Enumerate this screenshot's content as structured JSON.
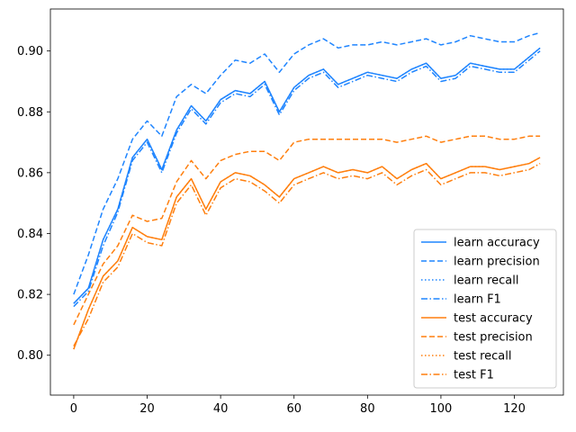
{
  "chart_data": {
    "type": "line",
    "title": "",
    "xlabel": "",
    "ylabel": "",
    "xlim": [
      -6.35,
      133.35
    ],
    "ylim": [
      0.7869,
      0.9138
    ],
    "xticks": [
      0,
      20,
      40,
      60,
      80,
      100,
      120
    ],
    "yticks": [
      0.8,
      0.82,
      0.84,
      0.86,
      0.88,
      0.9
    ],
    "ytick_labels": [
      "0.80",
      "0.82",
      "0.84",
      "0.86",
      "0.88",
      "0.90"
    ],
    "grid": false,
    "legend_position": "lower-right",
    "colors": {
      "learn": "#1f85ff",
      "test": "#ff7f0e"
    },
    "x": [
      0,
      4,
      8,
      12,
      16,
      20,
      24,
      28,
      32,
      36,
      40,
      44,
      48,
      52,
      56,
      60,
      64,
      68,
      72,
      76,
      80,
      84,
      88,
      92,
      96,
      100,
      104,
      108,
      112,
      116,
      120,
      124,
      127
    ],
    "series": [
      {
        "name": "learn accuracy",
        "group": "learn",
        "dash": "solid",
        "values": [
          0.817,
          0.822,
          0.838,
          0.848,
          0.865,
          0.871,
          0.861,
          0.874,
          0.882,
          0.877,
          0.884,
          0.887,
          0.886,
          0.89,
          0.88,
          0.888,
          0.892,
          0.894,
          0.889,
          0.891,
          0.893,
          0.892,
          0.891,
          0.894,
          0.896,
          0.891,
          0.892,
          0.896,
          0.895,
          0.894,
          0.894,
          0.898,
          0.901
        ]
      },
      {
        "name": "learn precision",
        "group": "learn",
        "dash": "dashed",
        "values": [
          0.82,
          0.833,
          0.848,
          0.858,
          0.871,
          0.877,
          0.872,
          0.885,
          0.889,
          0.886,
          0.892,
          0.897,
          0.896,
          0.899,
          0.893,
          0.899,
          0.902,
          0.904,
          0.901,
          0.902,
          0.902,
          0.903,
          0.902,
          0.903,
          0.904,
          0.902,
          0.903,
          0.905,
          0.904,
          0.903,
          0.903,
          0.905,
          0.906
        ]
      },
      {
        "name": "learn recall",
        "group": "learn",
        "dash": "dotted",
        "values": [
          0.817,
          0.822,
          0.838,
          0.848,
          0.865,
          0.871,
          0.861,
          0.874,
          0.882,
          0.877,
          0.884,
          0.887,
          0.886,
          0.89,
          0.88,
          0.888,
          0.892,
          0.894,
          0.889,
          0.891,
          0.893,
          0.892,
          0.891,
          0.894,
          0.896,
          0.891,
          0.892,
          0.896,
          0.895,
          0.894,
          0.894,
          0.898,
          0.901
        ]
      },
      {
        "name": "learn F1",
        "group": "learn",
        "dash": "dashdot",
        "values": [
          0.816,
          0.821,
          0.836,
          0.847,
          0.864,
          0.87,
          0.86,
          0.873,
          0.881,
          0.876,
          0.883,
          0.886,
          0.885,
          0.889,
          0.879,
          0.887,
          0.891,
          0.893,
          0.888,
          0.89,
          0.892,
          0.891,
          0.89,
          0.893,
          0.895,
          0.89,
          0.891,
          0.895,
          0.894,
          0.893,
          0.893,
          0.897,
          0.9
        ]
      },
      {
        "name": "test accuracy",
        "group": "test",
        "dash": "solid",
        "values": [
          0.802,
          0.815,
          0.826,
          0.831,
          0.842,
          0.839,
          0.838,
          0.852,
          0.858,
          0.848,
          0.857,
          0.86,
          0.859,
          0.856,
          0.852,
          0.858,
          0.86,
          0.862,
          0.86,
          0.861,
          0.86,
          0.862,
          0.858,
          0.861,
          0.863,
          0.858,
          0.86,
          0.862,
          0.862,
          0.861,
          0.862,
          0.863,
          0.865
        ]
      },
      {
        "name": "test precision",
        "group": "test",
        "dash": "dashed",
        "values": [
          0.81,
          0.82,
          0.83,
          0.836,
          0.846,
          0.844,
          0.845,
          0.857,
          0.864,
          0.858,
          0.864,
          0.866,
          0.867,
          0.867,
          0.864,
          0.87,
          0.871,
          0.871,
          0.871,
          0.871,
          0.871,
          0.871,
          0.87,
          0.871,
          0.872,
          0.87,
          0.871,
          0.872,
          0.872,
          0.871,
          0.871,
          0.872,
          0.872
        ]
      },
      {
        "name": "test recall",
        "group": "test",
        "dash": "dotted",
        "values": [
          0.802,
          0.815,
          0.826,
          0.831,
          0.842,
          0.839,
          0.838,
          0.852,
          0.858,
          0.848,
          0.857,
          0.86,
          0.859,
          0.856,
          0.852,
          0.858,
          0.86,
          0.862,
          0.86,
          0.861,
          0.86,
          0.862,
          0.858,
          0.861,
          0.863,
          0.858,
          0.86,
          0.862,
          0.862,
          0.861,
          0.862,
          0.863,
          0.865
        ]
      },
      {
        "name": "test F1",
        "group": "test",
        "dash": "dashdot",
        "values": [
          0.803,
          0.812,
          0.824,
          0.829,
          0.84,
          0.837,
          0.836,
          0.85,
          0.856,
          0.846,
          0.855,
          0.858,
          0.857,
          0.854,
          0.85,
          0.856,
          0.858,
          0.86,
          0.858,
          0.859,
          0.858,
          0.86,
          0.856,
          0.859,
          0.861,
          0.856,
          0.858,
          0.86,
          0.86,
          0.859,
          0.86,
          0.861,
          0.863
        ]
      }
    ]
  }
}
